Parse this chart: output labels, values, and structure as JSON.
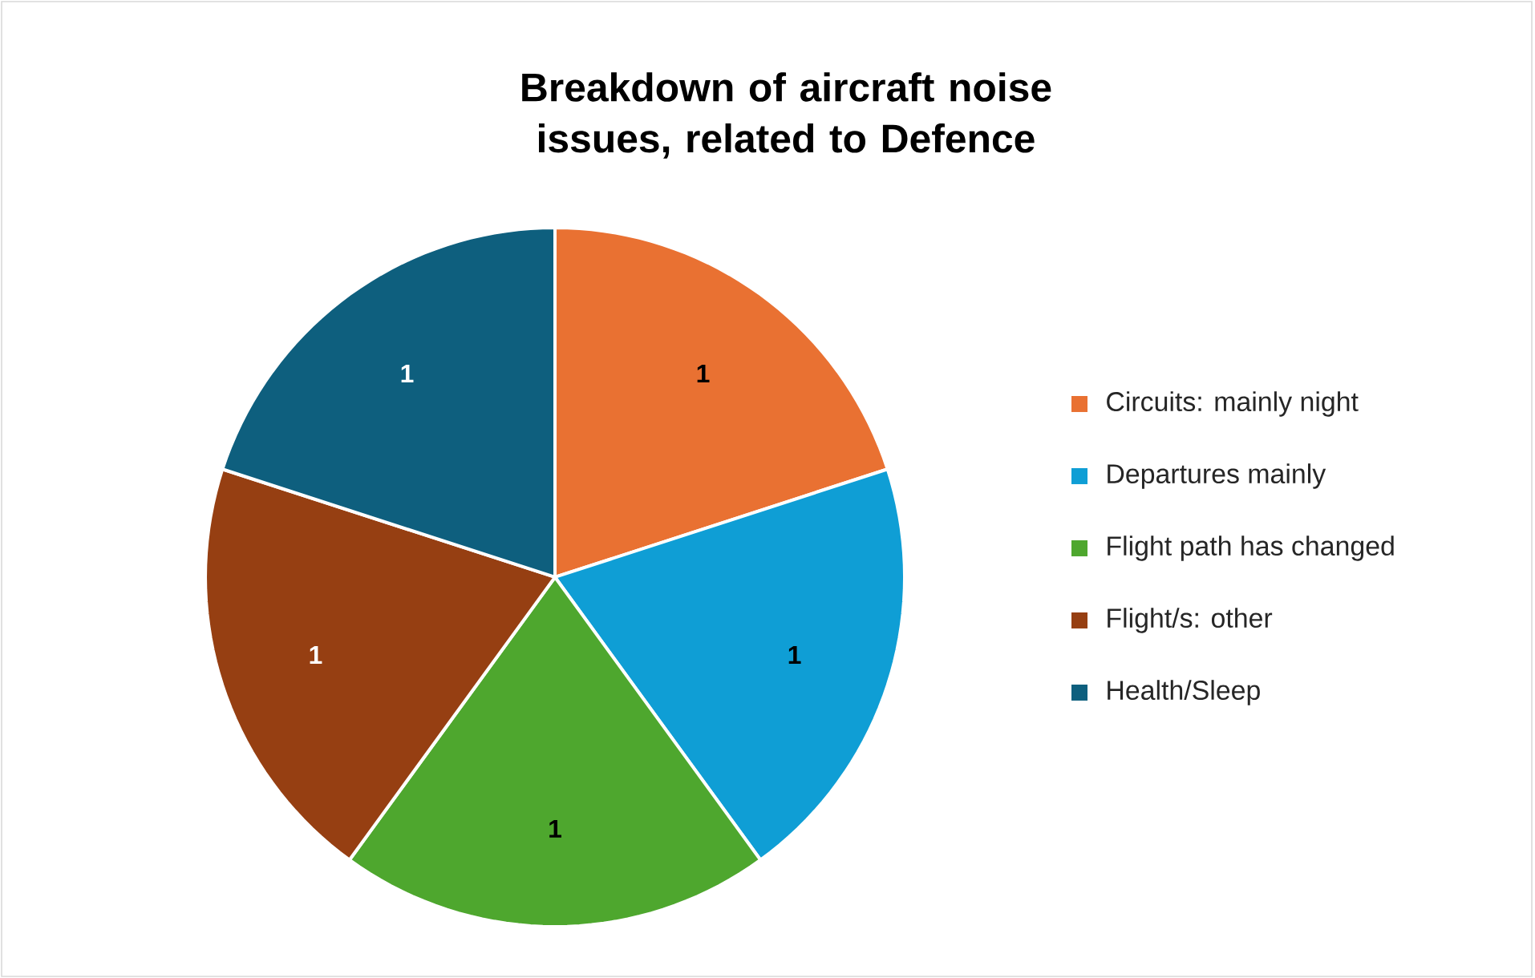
{
  "chart_data": {
    "type": "pie",
    "title": "Breakdown of aircraft noise issues, related to Defence",
    "categories": [
      "Circuits: mainly night",
      "Departures mainly",
      "Flight path has changed",
      "Flight/s: other",
      "Health/Sleep"
    ],
    "values": [
      1,
      1,
      1,
      1,
      1
    ],
    "colors": [
      "#e97132",
      "#0f9ed5",
      "#4ea72e",
      "#963f12",
      "#0e5f7e"
    ],
    "data_labels": true,
    "legend": "right"
  }
}
